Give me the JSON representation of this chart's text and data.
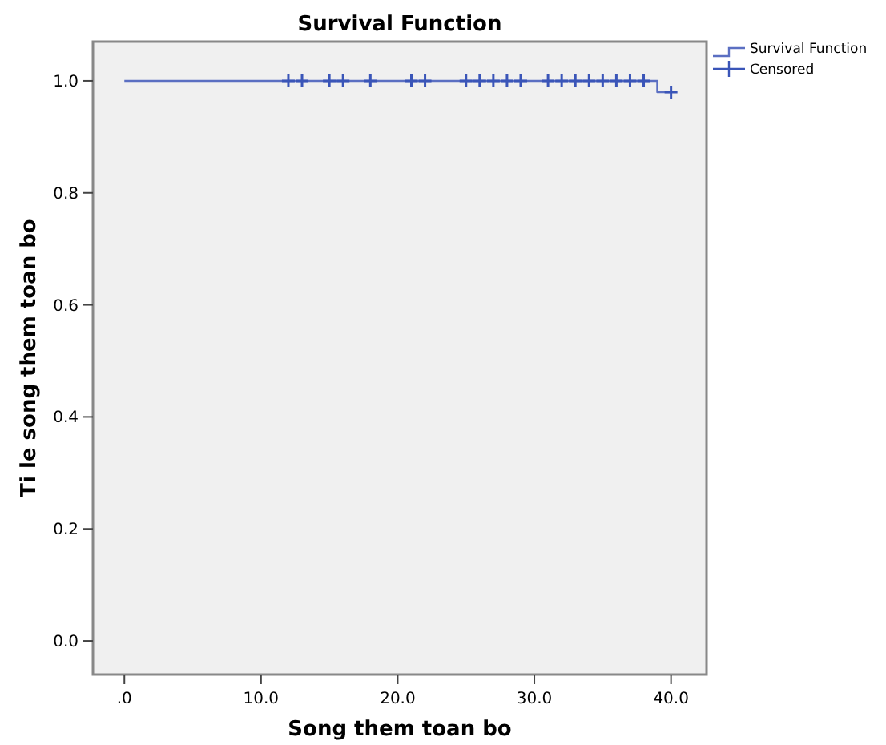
{
  "chart_data": {
    "type": "step",
    "title": "Survival Function",
    "xlabel": "Song them toan bo",
    "ylabel": "Ti le song them toan bo",
    "xlim": [
      -2.3,
      42.6
    ],
    "xticks": [
      {
        "value": 0,
        "label": ".0"
      },
      {
        "value": 10,
        "label": "10.0"
      },
      {
        "value": 20,
        "label": "20.0"
      },
      {
        "value": 30,
        "label": "30.0"
      },
      {
        "value": 40,
        "label": "40.0"
      }
    ],
    "ylim": [
      -0.06,
      1.07
    ],
    "yticks": [
      {
        "value": 0,
        "label": "0.0"
      },
      {
        "value": 0.2,
        "label": "0.2"
      },
      {
        "value": 0.4,
        "label": "0.4"
      },
      {
        "value": 0.6,
        "label": "0.6"
      },
      {
        "value": 0.8,
        "label": "0.8"
      },
      {
        "value": 1,
        "label": "1.0"
      }
    ],
    "grid": false,
    "legend": "top right",
    "series": [
      {
        "name": "Survival Function",
        "color": "#5b6fc2",
        "x": [
          0,
          39,
          40
        ],
        "values": [
          1,
          0.98,
          0.98
        ]
      },
      {
        "name": "Censored",
        "type": "scatter",
        "marker": "cross",
        "color": "#3a55b8",
        "x": [
          12,
          13,
          15,
          16,
          18,
          21,
          22,
          25,
          26,
          27,
          28,
          29,
          31,
          32,
          33,
          34,
          35,
          36,
          37,
          38,
          40
        ],
        "values": [
          1,
          1,
          1,
          1,
          1,
          1,
          1,
          1,
          1,
          1,
          1,
          1,
          1,
          1,
          1,
          1,
          1,
          1,
          1,
          1,
          0.98
        ]
      }
    ]
  }
}
